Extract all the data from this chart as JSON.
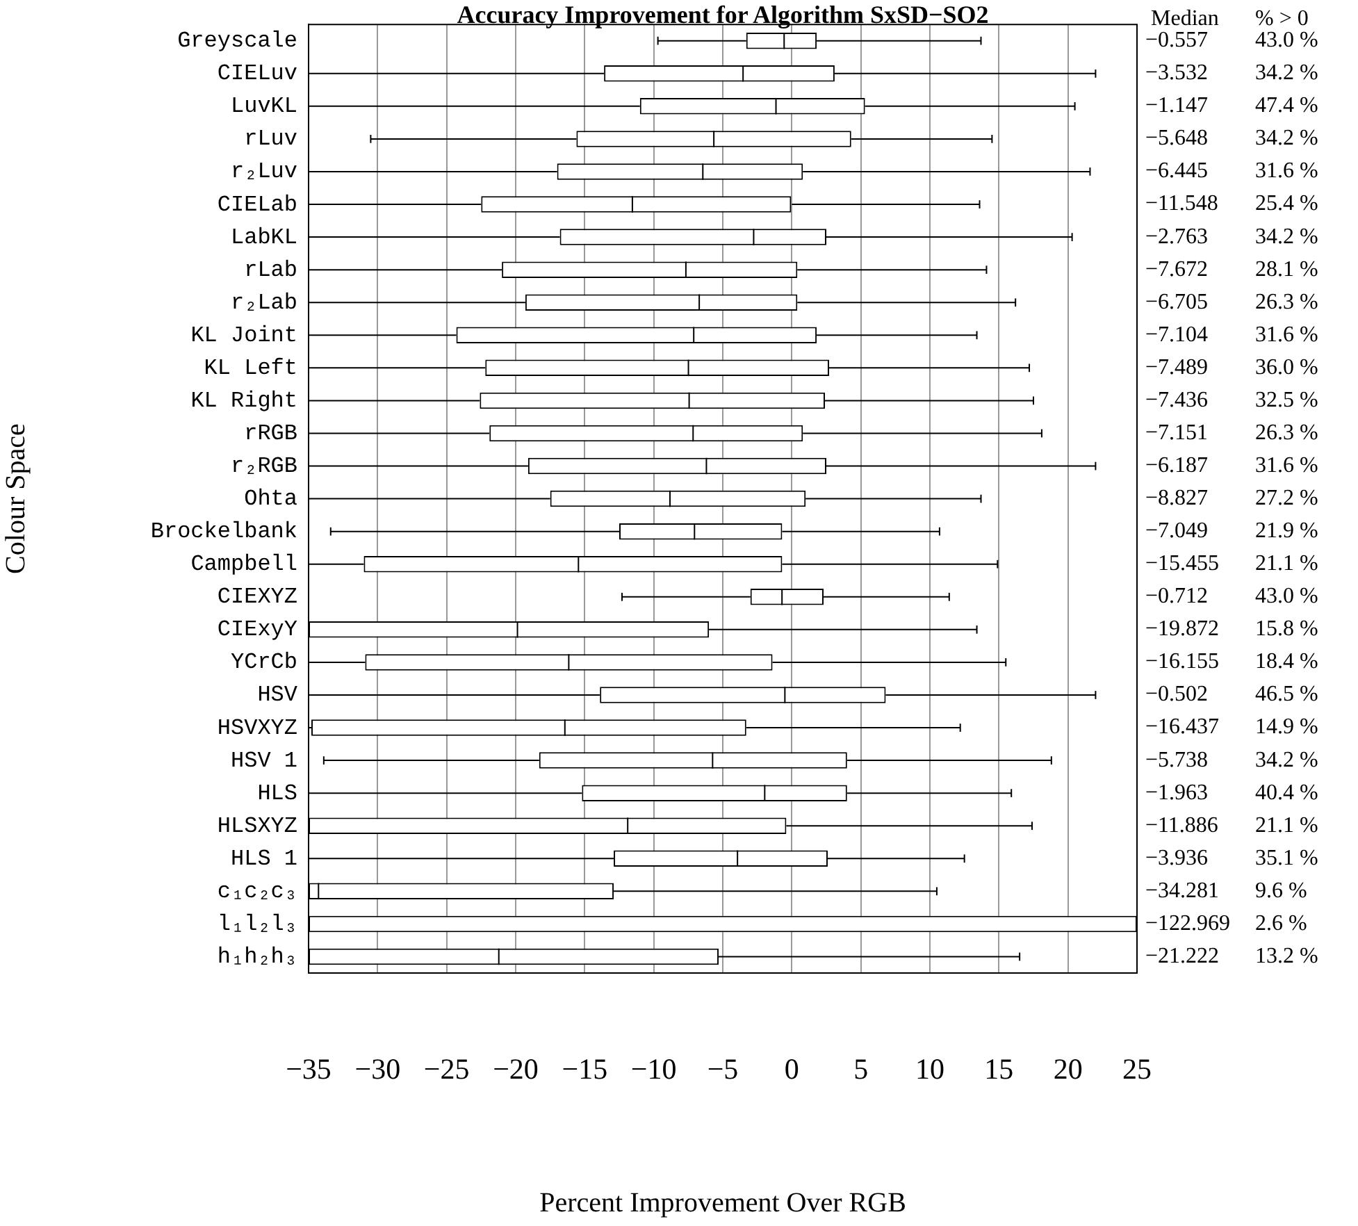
{
  "chart_data": {
    "type": "box",
    "orientation": "horizontal",
    "title": "Accuracy Improvement for Algorithm SxSD−SO2",
    "xlabel": "Percent Improvement Over RGB",
    "ylabel": "Colour Space",
    "categories": [
      "Greyscale",
      "CIELuv",
      "LuvKL",
      "rLuv",
      "r₂Luv",
      "CIELab",
      "LabKL",
      "rLab",
      "r₂Lab",
      "KL Joint",
      "KL Left",
      "KL Right",
      "rRGB",
      "r₂RGB",
      "Ohta",
      "Brockelbank",
      "Campbell",
      "CIEXYZ",
      "CIExyY",
      "YCrCb",
      "HSV",
      "HSVXYZ",
      "HSV 1",
      "HLS",
      "HLSXYZ",
      "HLS 1",
      "c₁c₂c₃",
      "l₁l₂l₃",
      "h₁h₂h₃"
    ],
    "boxes": [
      {
        "low": -9.7,
        "q1": -3.3,
        "median": -0.557,
        "q3": 1.8,
        "high": 13.7
      },
      {
        "low": -35,
        "q1": -13.6,
        "median": -3.532,
        "q3": 3.1,
        "high": 22.0
      },
      {
        "low": -35,
        "q1": -11.0,
        "median": -1.147,
        "q3": 5.3,
        "high": 20.5
      },
      {
        "low": -30.5,
        "q1": -15.6,
        "median": -5.648,
        "q3": 4.3,
        "high": 14.5
      },
      {
        "low": -35,
        "q1": -17.0,
        "median": -6.445,
        "q3": 0.8,
        "high": 21.6
      },
      {
        "low": -35,
        "q1": -22.5,
        "median": -11.548,
        "q3": 0.0,
        "high": 13.6
      },
      {
        "low": -35,
        "q1": -16.8,
        "median": -2.763,
        "q3": 2.5,
        "high": 20.3
      },
      {
        "low": -35,
        "q1": -21.0,
        "median": -7.672,
        "q3": 0.4,
        "high": 14.1
      },
      {
        "low": -35,
        "q1": -19.3,
        "median": -6.705,
        "q3": 0.4,
        "high": 16.2
      },
      {
        "low": -35,
        "q1": -24.3,
        "median": -7.104,
        "q3": 1.8,
        "high": 13.4
      },
      {
        "low": -35,
        "q1": -22.2,
        "median": -7.489,
        "q3": 2.7,
        "high": 17.2
      },
      {
        "low": -35,
        "q1": -22.6,
        "median": -7.436,
        "q3": 2.4,
        "high": 17.5
      },
      {
        "low": -35,
        "q1": -21.9,
        "median": -7.151,
        "q3": 0.8,
        "high": 18.1
      },
      {
        "low": -35,
        "q1": -19.1,
        "median": -6.187,
        "q3": 2.5,
        "high": 22.0
      },
      {
        "low": -35,
        "q1": -17.5,
        "median": -8.827,
        "q3": 1.0,
        "high": 13.7
      },
      {
        "low": -33.4,
        "q1": -12.5,
        "median": -7.049,
        "q3": -0.7,
        "high": 10.7
      },
      {
        "low": -35,
        "q1": -31.0,
        "median": -15.455,
        "q3": -0.7,
        "high": 14.9
      },
      {
        "low": -12.3,
        "q1": -3.0,
        "median": -0.712,
        "q3": 2.3,
        "high": 11.4
      },
      {
        "low": -35,
        "q1": -35,
        "median": -19.872,
        "q3": -6.0,
        "high": 13.4
      },
      {
        "low": -35,
        "q1": -30.9,
        "median": -16.155,
        "q3": -1.4,
        "high": 15.5
      },
      {
        "low": -35,
        "q1": -13.9,
        "median": -0.502,
        "q3": 6.8,
        "high": 22.0
      },
      {
        "low": -35,
        "q1": -34.8,
        "median": -16.437,
        "q3": -3.3,
        "high": 12.2
      },
      {
        "low": -33.9,
        "q1": -18.3,
        "median": -5.738,
        "q3": 4.0,
        "high": 18.8
      },
      {
        "low": -35,
        "q1": -15.2,
        "median": -1.963,
        "q3": 4.0,
        "high": 15.9
      },
      {
        "low": -35,
        "q1": -35,
        "median": -11.886,
        "q3": -0.4,
        "high": 17.4
      },
      {
        "low": -35,
        "q1": -12.9,
        "median": -3.936,
        "q3": 2.6,
        "high": 12.5
      },
      {
        "low": -35,
        "q1": -35,
        "median": -34.281,
        "q3": -12.9,
        "high": 10.5
      },
      {
        "low": -35,
        "q1": -35,
        "median": null,
        "q3": 25,
        "high": 25
      },
      {
        "low": -35,
        "q1": -35,
        "median": -21.222,
        "q3": -5.3,
        "high": 16.5
      }
    ],
    "xlim": [
      -35,
      25
    ],
    "xticks": [
      -35,
      -30,
      -25,
      -20,
      -15,
      -10,
      -5,
      0,
      5,
      10,
      15,
      20,
      25
    ],
    "grid": "x",
    "legend": false,
    "annotations": [
      "Median",
      "% > 0",
      "−0.557",
      "43.0 %",
      "−3.532",
      "34.2 %",
      "−1.147",
      "47.4 %",
      "−5.648",
      "34.2 %",
      "−6.445",
      "31.6 %",
      "−11.548",
      "25.4 %",
      "−2.763",
      "34.2 %",
      "−7.672",
      "28.1 %",
      "−6.705",
      "26.3 %",
      "−7.104",
      "31.6 %",
      "−7.489",
      "36.0 %",
      "−7.436",
      "32.5 %",
      "−7.151",
      "26.3 %",
      "−6.187",
      "31.6 %",
      "−8.827",
      "27.2 %",
      "−7.049",
      "21.9 %",
      "−15.455",
      "21.1 %",
      "−0.712",
      "43.0 %",
      "−19.872",
      "15.8 %",
      "−16.155",
      "18.4 %",
      "−0.502",
      "46.5 %",
      "−16.437",
      "14.9 %",
      "−5.738",
      "34.2 %",
      "−1.963",
      "40.4 %",
      "−11.886",
      "21.1 %",
      "−3.936",
      "35.1 %",
      "−34.281",
      "9.6 %",
      "−122.969",
      "2.6 %",
      "−21.222",
      "13.2 %"
    ]
  }
}
